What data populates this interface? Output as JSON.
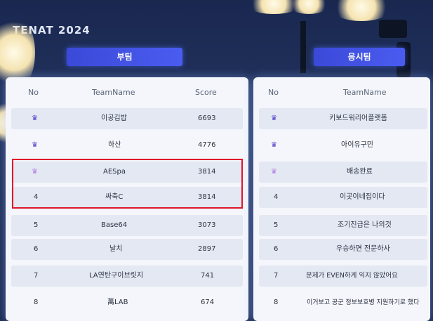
{
  "banner": {
    "top_text": "",
    "title": "TENAT 2024"
  },
  "left_tab": {
    "label": "부팀"
  },
  "right_tab": {
    "label": "응시팀"
  },
  "left_table": {
    "headers": {
      "no": "No",
      "team": "TeamName",
      "score": "Score"
    },
    "rows": [
      {
        "no": "",
        "crown": "crown-icon",
        "team": "이공김밥",
        "score": "6693"
      },
      {
        "no": "",
        "crown": "crown-icon",
        "team": "하산",
        "score": "4776"
      },
      {
        "no": "",
        "crown": "crown-icon",
        "team": "AESpa",
        "score": "3814"
      },
      {
        "no": "4",
        "crown": "",
        "team": "싸축C",
        "score": "3814"
      },
      {
        "no": "5",
        "crown": "",
        "team": "Base64",
        "score": "3073"
      },
      {
        "no": "6",
        "crown": "",
        "team": "날치",
        "score": "2897"
      },
      {
        "no": "7",
        "crown": "",
        "team": "LA연탄구이브릿지",
        "score": "741"
      },
      {
        "no": "8",
        "crown": "",
        "team": "萬LAB",
        "score": "674"
      }
    ]
  },
  "right_table": {
    "headers": {
      "no": "No",
      "team": "TeamName"
    },
    "rows": [
      {
        "no": "",
        "crown": "crown-icon",
        "team": "키보드워리어플랫폼"
      },
      {
        "no": "",
        "crown": "crown-icon",
        "team": "아이유구민"
      },
      {
        "no": "",
        "crown": "crown-icon",
        "team": "배송완료"
      },
      {
        "no": "4",
        "crown": "",
        "team": "이곳이네집이다"
      },
      {
        "no": "5",
        "crown": "",
        "team": "조기진급은 나의것"
      },
      {
        "no": "6",
        "crown": "",
        "team": "우승하면 전문하사"
      },
      {
        "no": "7",
        "crown": "",
        "team": "문제가 EVEN하게 익지 않았어요"
      },
      {
        "no": "8",
        "crown": "",
        "team": "이거보고 공군 정보보호병 지원하기로 했다"
      }
    ]
  },
  "colors": {
    "accent": "#4a5cf0",
    "highlight": "#e0152a",
    "crown_gold": "#5a4bd6",
    "crown_purple": "#b07be0"
  }
}
